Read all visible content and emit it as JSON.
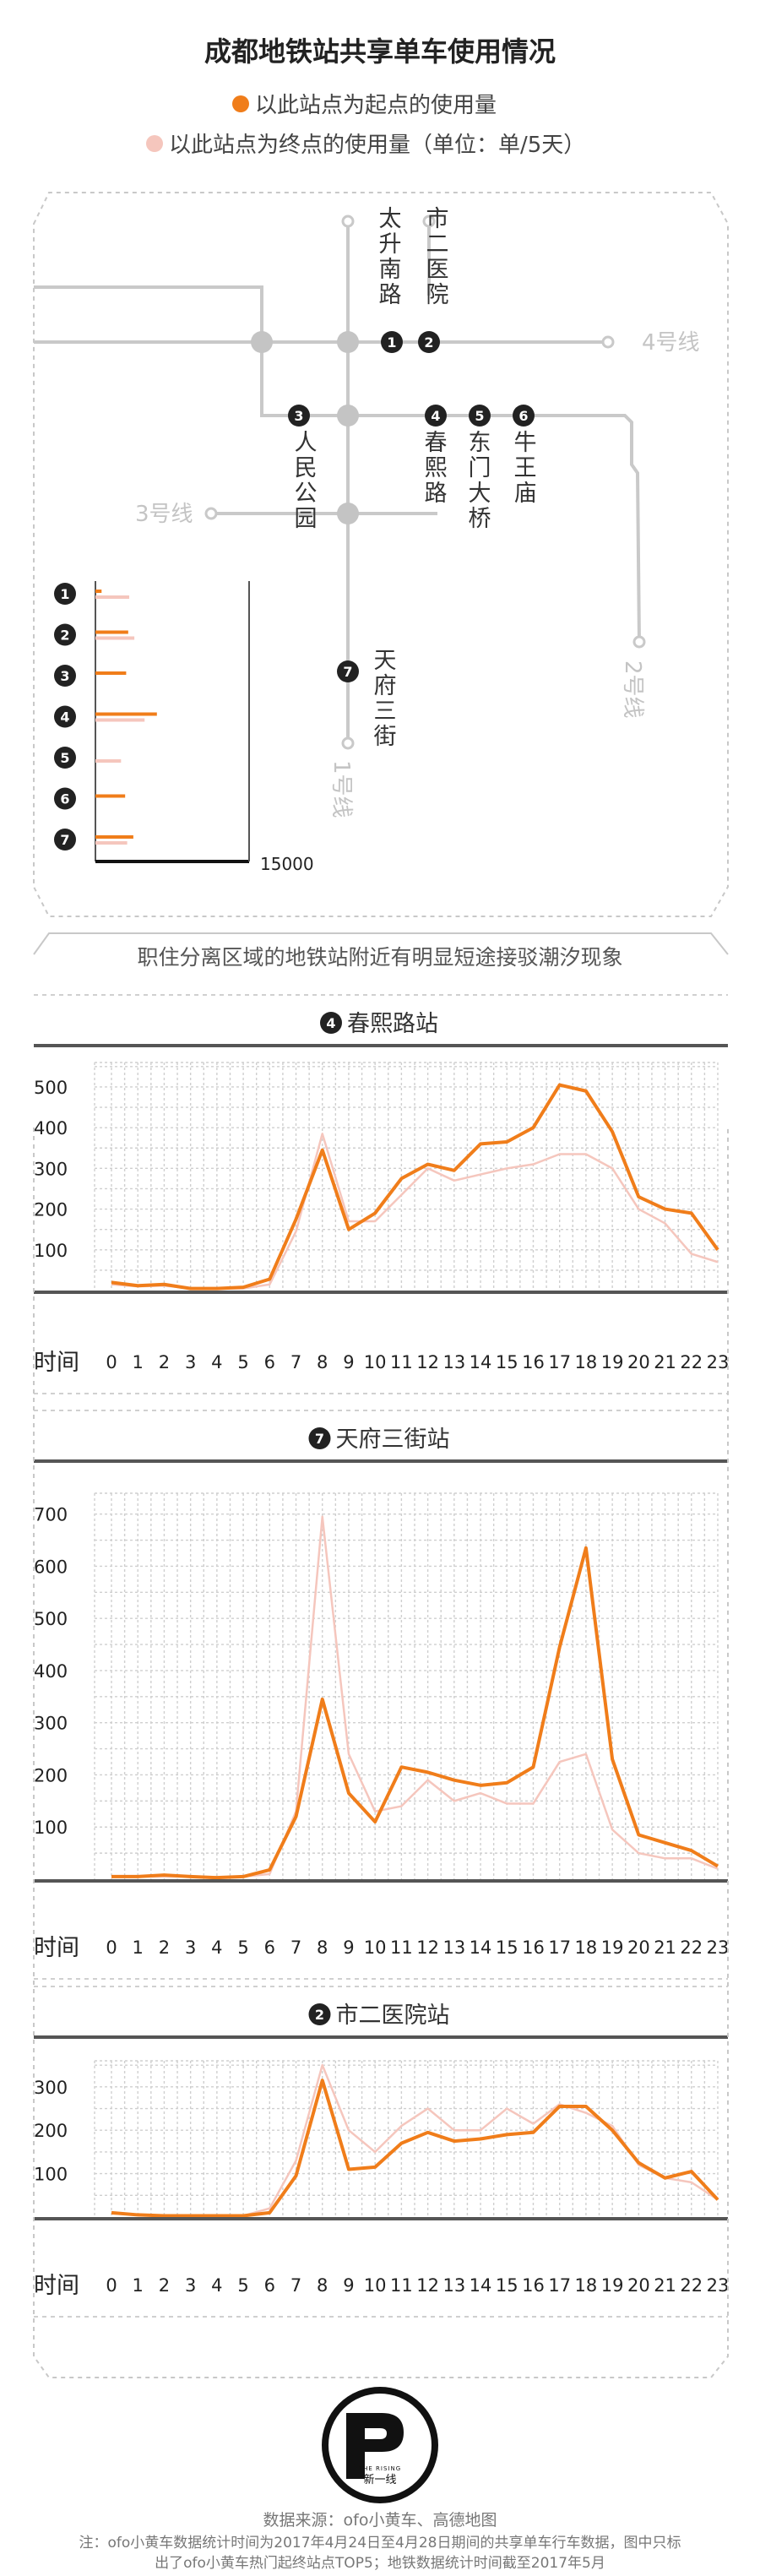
{
  "title": "成都地铁站共享单车使用情况",
  "legend": {
    "start_label": "以此站点为起点的使用量",
    "end_label": "以此站点为终点的使用量（单位：单/5天）",
    "start_color": "#f07d1a",
    "end_color": "#f5c6bd"
  },
  "map": {
    "lines": [
      "4号线",
      "3号线",
      "2号线",
      "1号线"
    ],
    "stations": [
      {
        "num": "1",
        "name": "太升南路"
      },
      {
        "num": "2",
        "name": "市二医院"
      },
      {
        "num": "3",
        "name": "人民公园"
      },
      {
        "num": "4",
        "name": "春熙路"
      },
      {
        "num": "5",
        "name": "东门大桥"
      },
      {
        "num": "6",
        "name": "牛王庙"
      },
      {
        "num": "7",
        "name": "天府三街"
      }
    ],
    "mini_bars": {
      "start": [
        600,
        3200,
        3000,
        6000,
        0,
        2900,
        3700
      ],
      "end": [
        3300,
        3800,
        0,
        4800,
        2500,
        0,
        3100
      ],
      "scale_label": "15000",
      "scale_value": 15000
    }
  },
  "section_subtitle": "职住分离区域的地铁站附近有明显短途接驳潮汐现象",
  "x_axis_label": "时间",
  "charts_common": {
    "hours": [
      "0",
      "1",
      "2",
      "3",
      "4",
      "5",
      "6",
      "7",
      "8",
      "9",
      "10",
      "11",
      "12",
      "13",
      "14",
      "15",
      "16",
      "17",
      "18",
      "19",
      "20",
      "21",
      "22",
      "23"
    ]
  },
  "chart_data": [
    {
      "type": "line",
      "title": "春熙路站",
      "station_num": "4",
      "x": [
        0,
        1,
        2,
        3,
        4,
        5,
        6,
        7,
        8,
        9,
        10,
        11,
        12,
        13,
        14,
        15,
        16,
        17,
        18,
        19,
        20,
        21,
        22,
        23
      ],
      "ylim": [
        0,
        560
      ],
      "yticks": [
        100,
        200,
        300,
        400,
        500
      ],
      "series": [
        {
          "name": "以此站点为起点的使用量",
          "values": [
            20,
            12,
            15,
            5,
            5,
            8,
            28,
            175,
            345,
            150,
            190,
            275,
            310,
            295,
            360,
            365,
            400,
            505,
            490,
            390,
            230,
            200,
            190,
            100
          ]
        },
        {
          "name": "以此站点为终点的使用量",
          "values": [
            15,
            10,
            12,
            5,
            5,
            5,
            15,
            145,
            385,
            170,
            170,
            235,
            300,
            270,
            285,
            300,
            310,
            335,
            335,
            300,
            200,
            165,
            90,
            70
          ]
        }
      ]
    },
    {
      "type": "line",
      "title": "天府三街站",
      "station_num": "7",
      "x": [
        0,
        1,
        2,
        3,
        4,
        5,
        6,
        7,
        8,
        9,
        10,
        11,
        12,
        13,
        14,
        15,
        16,
        17,
        18,
        19,
        20,
        21,
        22,
        23
      ],
      "ylim": [
        0,
        740
      ],
      "yticks": [
        100,
        200,
        300,
        400,
        500,
        600,
        700
      ],
      "series": [
        {
          "name": "以此站点为起点的使用量",
          "values": [
            5,
            5,
            8,
            5,
            3,
            5,
            18,
            120,
            345,
            165,
            110,
            215,
            205,
            190,
            180,
            185,
            215,
            445,
            635,
            230,
            85,
            70,
            55,
            25
          ]
        },
        {
          "name": "以此站点为终点的使用量",
          "values": [
            5,
            5,
            5,
            5,
            3,
            5,
            10,
            130,
            695,
            240,
            130,
            140,
            190,
            150,
            165,
            145,
            145,
            225,
            240,
            95,
            50,
            40,
            40,
            20
          ]
        }
      ]
    },
    {
      "type": "line",
      "title": "市二医院站",
      "station_num": "2",
      "x": [
        0,
        1,
        2,
        3,
        4,
        5,
        6,
        7,
        8,
        9,
        10,
        11,
        12,
        13,
        14,
        15,
        16,
        17,
        18,
        19,
        20,
        21,
        22,
        23
      ],
      "ylim": [
        0,
        360
      ],
      "yticks": [
        100,
        200,
        300
      ],
      "series": [
        {
          "name": "以此站点为起点的使用量",
          "values": [
            10,
            5,
            3,
            3,
            3,
            3,
            10,
            95,
            315,
            110,
            115,
            170,
            195,
            175,
            180,
            190,
            195,
            255,
            255,
            200,
            125,
            90,
            105,
            40
          ]
        },
        {
          "name": "以此站点为终点的使用量",
          "values": [
            8,
            5,
            3,
            3,
            3,
            3,
            20,
            130,
            350,
            200,
            150,
            210,
            250,
            200,
            200,
            250,
            215,
            260,
            240,
            210,
            120,
            90,
            80,
            40
          ]
        }
      ]
    }
  ],
  "logo": {
    "en": "THE RISING",
    "cn": "新一线"
  },
  "source": "数据来源：ofo小黄车、高德地图",
  "note_line1": "注：ofo小黄车数据统计时间为2017年4月24日至4月28日期间的共享单车行车数据，图中只标",
  "note_line2": "出了ofo小黄车热门起终站点TOP5；地铁数据统计时间截至2017年5月"
}
